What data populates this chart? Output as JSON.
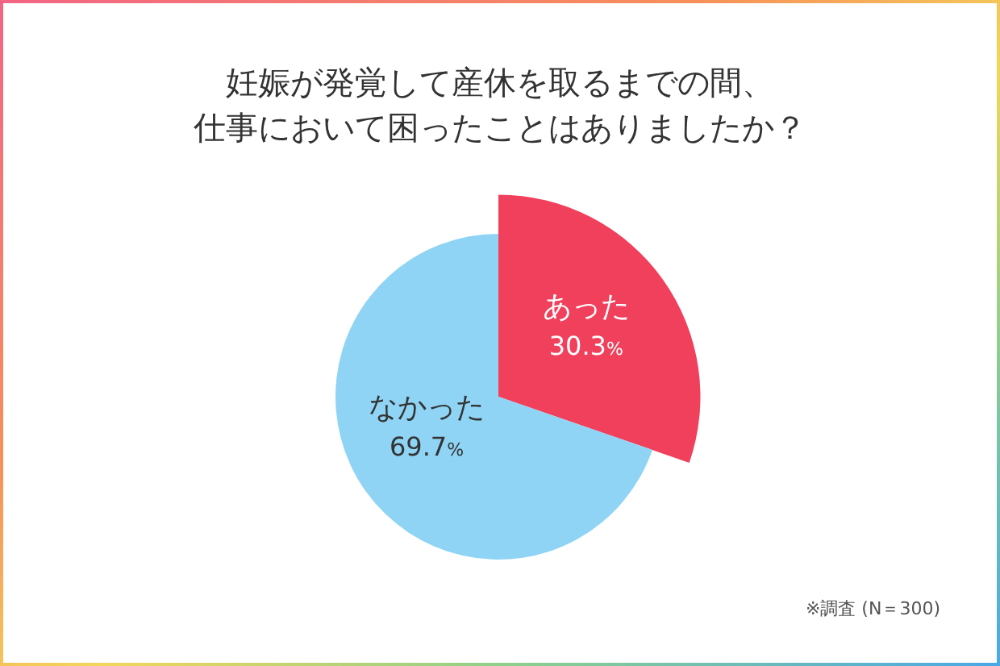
{
  "chart_data": {
    "type": "pie",
    "title": "妊娠が発覚して産休を取るまでの間、仕事において困ったことはありましたか？",
    "categories": [
      "あった",
      "なかった"
    ],
    "values": [
      30.3,
      69.7
    ],
    "colors": [
      "#f0405c",
      "#8fd4f5"
    ],
    "value_labels": [
      "30.3%",
      "69.7%"
    ],
    "annotations": [
      "※調査 (N＝300)"
    ]
  }
}
